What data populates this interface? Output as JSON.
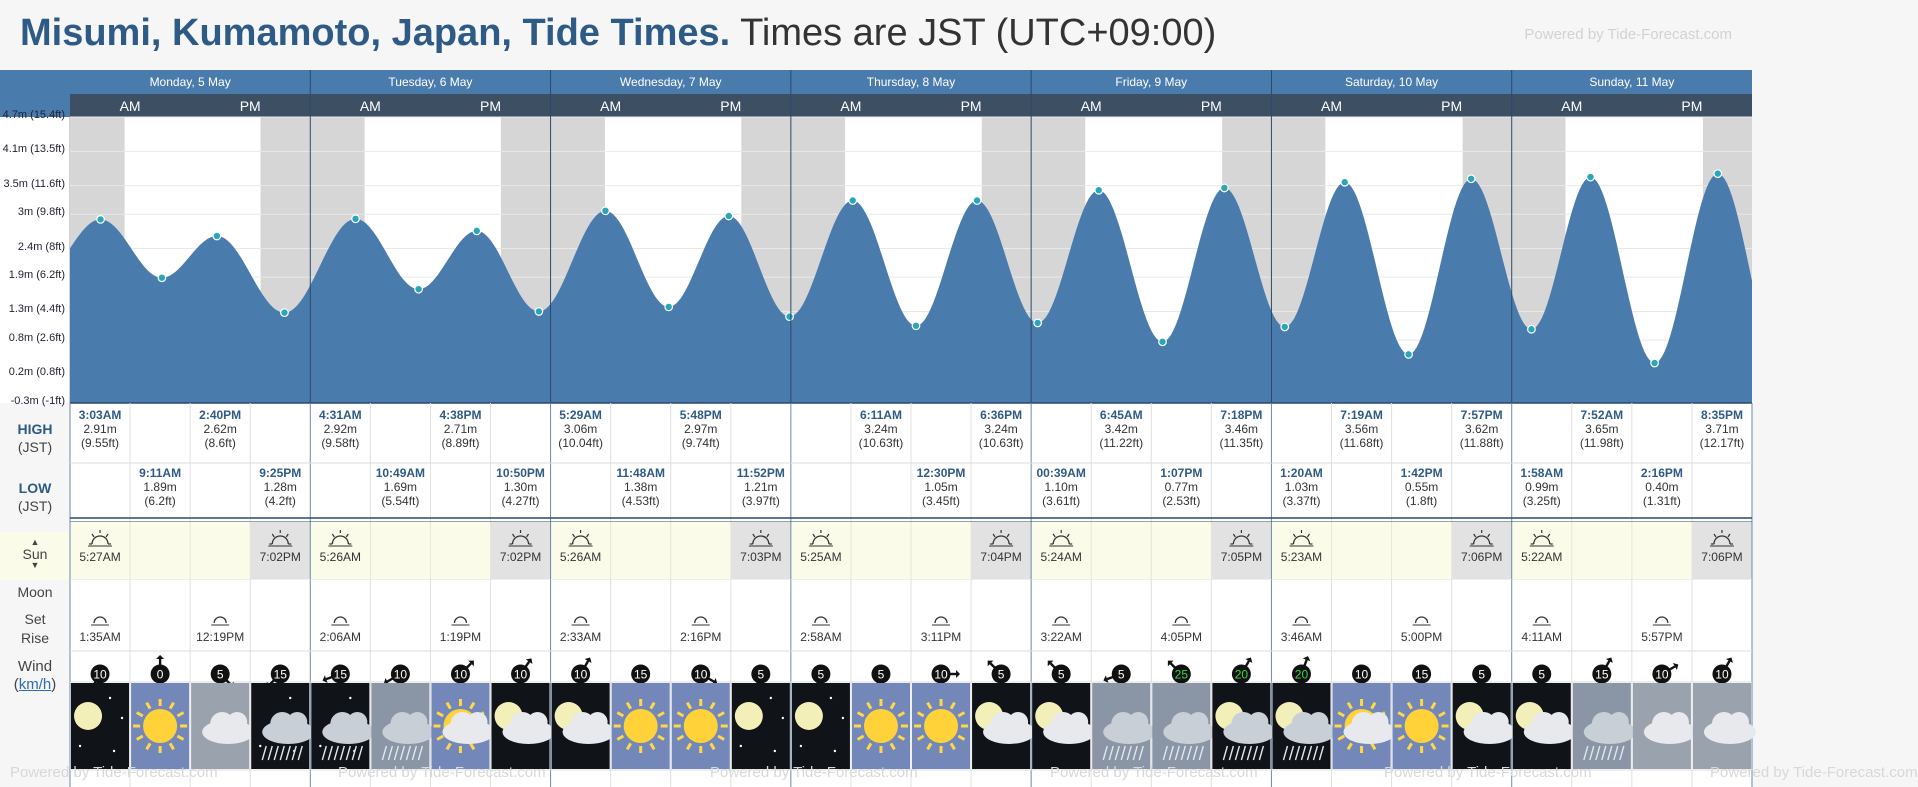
{
  "header": {
    "place": "Misumi, Kumamoto, Japan, Tide Times.",
    "timezone": "Times are JST (UTC+09:00)",
    "powered": "Powered by Tide-Forecast.com"
  },
  "watermark": "Powered by Tide-Forecast.com",
  "ampm": {
    "am": "AM",
    "pm": "PM"
  },
  "rows": {
    "high": "HIGH",
    "high_tz": "(JST)",
    "low": "LOW",
    "low_tz": "(JST)",
    "sun": "Sun",
    "moon": "Moon",
    "moon_set": "Set",
    "moon_rise": "Rise",
    "wind": "Wind",
    "wind_unit": "km/h"
  },
  "days": [
    "Monday, 5 May",
    "Tuesday, 6 May",
    "Wednesday, 7 May",
    "Thursday, 8 May",
    "Friday, 9 May",
    "Saturday, 10 May",
    "Sunday, 11 May"
  ],
  "chart_data": {
    "type": "area",
    "x_unit": "hours from Monday 5 May 00:00 JST",
    "ylim": [
      -0.3,
      4.7
    ],
    "y_ticks": [
      {
        "v": -0.3,
        "label": "-0.3m (-1ft)"
      },
      {
        "v": 0.2,
        "label": "0.2m (0.8ft)"
      },
      {
        "v": 0.8,
        "label": "0.8m (2.6ft)"
      },
      {
        "v": 1.3,
        "label": "1.3m (4.4ft)"
      },
      {
        "v": 1.9,
        "label": "1.9m (6.2ft)"
      },
      {
        "v": 2.4,
        "label": "2.4m (8ft)"
      },
      {
        "v": 3.0,
        "label": "3m (9.8ft)"
      },
      {
        "v": 3.5,
        "label": "3.5m (11.6ft)"
      },
      {
        "v": 4.1,
        "label": "4.1m (13.5ft)"
      },
      {
        "v": 4.7,
        "label": "4.7m (15.4ft)"
      }
    ],
    "extremes": [
      {
        "x": 3.05,
        "y": 2.91,
        "type": "high",
        "time": "3:03AM",
        "m": "2.91m",
        "ft": "(9.55ft)"
      },
      {
        "x": 9.18,
        "y": 1.89,
        "type": "low",
        "time": "9:11AM",
        "m": "1.89m",
        "ft": "(6.2ft)"
      },
      {
        "x": 14.67,
        "y": 2.62,
        "type": "high",
        "time": "2:40PM",
        "m": "2.62m",
        "ft": "(8.6ft)"
      },
      {
        "x": 21.42,
        "y": 1.28,
        "type": "low",
        "time": "9:25PM",
        "m": "1.28m",
        "ft": "(4.2ft)"
      },
      {
        "x": 28.52,
        "y": 2.92,
        "type": "high",
        "time": "4:31AM",
        "m": "2.92m",
        "ft": "(9.58ft)"
      },
      {
        "x": 34.82,
        "y": 1.69,
        "type": "low",
        "time": "10:49AM",
        "m": "1.69m",
        "ft": "(5.54ft)"
      },
      {
        "x": 40.63,
        "y": 2.71,
        "type": "high",
        "time": "4:38PM",
        "m": "2.71m",
        "ft": "(8.89ft)"
      },
      {
        "x": 46.83,
        "y": 1.3,
        "type": "low",
        "time": "10:50PM",
        "m": "1.30m",
        "ft": "(4.27ft)"
      },
      {
        "x": 53.48,
        "y": 3.06,
        "type": "high",
        "time": "5:29AM",
        "m": "3.06m",
        "ft": "(10.04ft)"
      },
      {
        "x": 59.8,
        "y": 1.38,
        "type": "low",
        "time": "11:48AM",
        "m": "1.38m",
        "ft": "(4.53ft)"
      },
      {
        "x": 65.8,
        "y": 2.97,
        "type": "high",
        "time": "5:48PM",
        "m": "2.97m",
        "ft": "(9.74ft)"
      },
      {
        "x": 71.87,
        "y": 1.21,
        "type": "low",
        "time": "11:52PM",
        "m": "1.21m",
        "ft": "(3.97ft)"
      },
      {
        "x": 78.18,
        "y": 3.24,
        "type": "high",
        "time": "6:11AM",
        "m": "3.24m",
        "ft": "(10.63ft)"
      },
      {
        "x": 84.5,
        "y": 1.05,
        "type": "low",
        "time": "12:30PM",
        "m": "1.05m",
        "ft": "(3.45ft)"
      },
      {
        "x": 90.6,
        "y": 3.24,
        "type": "high",
        "time": "6:36PM",
        "m": "3.24m",
        "ft": "(10.63ft)"
      },
      {
        "x": 96.65,
        "y": 1.1,
        "type": "low",
        "time": "00:39AM",
        "m": "1.10m",
        "ft": "(3.61ft)"
      },
      {
        "x": 102.75,
        "y": 3.42,
        "type": "high",
        "time": "6:45AM",
        "m": "3.42m",
        "ft": "(11.22ft)"
      },
      {
        "x": 109.12,
        "y": 0.77,
        "type": "low",
        "time": "1:07PM",
        "m": "0.77m",
        "ft": "(2.53ft)"
      },
      {
        "x": 115.3,
        "y": 3.46,
        "type": "high",
        "time": "7:18PM",
        "m": "3.46m",
        "ft": "(11.35ft)"
      },
      {
        "x": 121.33,
        "y": 1.03,
        "type": "low",
        "time": "1:20AM",
        "m": "1.03m",
        "ft": "(3.37ft)"
      },
      {
        "x": 127.32,
        "y": 3.56,
        "type": "high",
        "time": "7:19AM",
        "m": "3.56m",
        "ft": "(11.68ft)"
      },
      {
        "x": 133.7,
        "y": 0.55,
        "type": "low",
        "time": "1:42PM",
        "m": "0.55m",
        "ft": "(1.8ft)"
      },
      {
        "x": 139.95,
        "y": 3.62,
        "type": "high",
        "time": "7:57PM",
        "m": "3.62m",
        "ft": "(11.88ft)"
      },
      {
        "x": 145.97,
        "y": 0.99,
        "type": "low",
        "time": "1:58AM",
        "m": "0.99m",
        "ft": "(3.25ft)"
      },
      {
        "x": 151.87,
        "y": 3.65,
        "type": "high",
        "time": "7:52AM",
        "m": "3.65m",
        "ft": "(11.98ft)"
      },
      {
        "x": 158.27,
        "y": 0.4,
        "type": "low",
        "time": "2:16PM",
        "m": "0.40m",
        "ft": "(1.31ft)"
      },
      {
        "x": 164.58,
        "y": 3.71,
        "type": "high",
        "time": "8:35PM",
        "m": "3.71m",
        "ft": "(12.17ft)"
      }
    ],
    "night_hours": [
      [
        0,
        5.45
      ],
      [
        19.03,
        29.43
      ],
      [
        43.03,
        53.43
      ],
      [
        67.05,
        77.42
      ],
      [
        91.07,
        101.4
      ],
      [
        115.08,
        125.38
      ],
      [
        139.1,
        149.37
      ],
      [
        163.1,
        168
      ]
    ]
  },
  "sun": [
    {
      "slot": 0,
      "time": "5:27AM",
      "kind": "rise"
    },
    {
      "slot": 3,
      "time": "7:02PM",
      "kind": "set"
    },
    {
      "slot": 4,
      "time": "5:26AM",
      "kind": "rise"
    },
    {
      "slot": 7,
      "time": "7:02PM",
      "kind": "set"
    },
    {
      "slot": 8,
      "time": "5:26AM",
      "kind": "rise"
    },
    {
      "slot": 11,
      "time": "7:03PM",
      "kind": "set"
    },
    {
      "slot": 12,
      "time": "5:25AM",
      "kind": "rise"
    },
    {
      "slot": 15,
      "time": "7:04PM",
      "kind": "set"
    },
    {
      "slot": 16,
      "time": "5:24AM",
      "kind": "rise"
    },
    {
      "slot": 19,
      "time": "7:05PM",
      "kind": "set"
    },
    {
      "slot": 20,
      "time": "5:23AM",
      "kind": "rise"
    },
    {
      "slot": 23,
      "time": "7:06PM",
      "kind": "set"
    },
    {
      "slot": 24,
      "time": "5:22AM",
      "kind": "rise"
    },
    {
      "slot": 27,
      "time": "7:06PM",
      "kind": "set"
    }
  ],
  "moon": [
    {
      "slot": 0,
      "time": "1:35AM"
    },
    {
      "slot": 2,
      "time": "12:19PM"
    },
    {
      "slot": 4,
      "time": "2:06AM"
    },
    {
      "slot": 6,
      "time": "1:19PM"
    },
    {
      "slot": 8,
      "time": "2:33AM"
    },
    {
      "slot": 10,
      "time": "2:16PM"
    },
    {
      "slot": 12,
      "time": "2:58AM"
    },
    {
      "slot": 14,
      "time": "3:11PM"
    },
    {
      "slot": 16,
      "time": "3:22AM"
    },
    {
      "slot": 18,
      "time": "4:05PM"
    },
    {
      "slot": 20,
      "time": "3:46AM"
    },
    {
      "slot": 22,
      "time": "5:00PM"
    },
    {
      "slot": 24,
      "time": "4:11AM"
    },
    {
      "slot": 26,
      "time": "5:57PM"
    }
  ],
  "wind": [
    {
      "v": "10",
      "dir": 210,
      "color": "#ffffff"
    },
    {
      "v": "0",
      "dir": 0,
      "color": "#ffffff"
    },
    {
      "v": "5",
      "dir": 135,
      "color": "#ffffff"
    },
    {
      "v": "15",
      "dir": 225,
      "color": "#ffffff"
    },
    {
      "v": "15",
      "dir": 250,
      "color": "#ffffff"
    },
    {
      "v": "10",
      "dir": 240,
      "color": "#ffffff"
    },
    {
      "v": "10",
      "dir": 45,
      "color": "#ffffff"
    },
    {
      "v": "10",
      "dir": 35,
      "color": "#ffffff"
    },
    {
      "v": "10",
      "dir": 30,
      "color": "#ffffff"
    },
    {
      "v": "15",
      "dir": 180,
      "color": "#ffffff"
    },
    {
      "v": "10",
      "dir": 120,
      "color": "#ffffff"
    },
    {
      "v": "5",
      "dir": 200,
      "color": "#ffffff"
    },
    {
      "v": "5",
      "dir": 200,
      "color": "#ffffff"
    },
    {
      "v": "5",
      "dir": 200,
      "color": "#ffffff"
    },
    {
      "v": "10",
      "dir": 90,
      "color": "#ffffff"
    },
    {
      "v": "5",
      "dir": 315,
      "color": "#ffffff"
    },
    {
      "v": "5",
      "dir": 315,
      "color": "#ffffff"
    },
    {
      "v": "5",
      "dir": 250,
      "color": "#ffffff"
    },
    {
      "v": "25",
      "dir": 315,
      "color": "#37d64a"
    },
    {
      "v": "20",
      "dir": 30,
      "color": "#37d64a"
    },
    {
      "v": "20",
      "dir": 20,
      "color": "#37d64a"
    },
    {
      "v": "10",
      "dir": 180,
      "color": "#ffffff"
    },
    {
      "v": "15",
      "dir": 180,
      "color": "#ffffff"
    },
    {
      "v": "5",
      "dir": 200,
      "color": "#ffffff"
    },
    {
      "v": "5",
      "dir": 200,
      "color": "#ffffff"
    },
    {
      "v": "15",
      "dir": 30,
      "color": "#ffffff"
    },
    {
      "v": "10",
      "dir": 60,
      "color": "#ffffff"
    },
    {
      "v": "10",
      "dir": 30,
      "color": "#ffffff"
    }
  ],
  "weather": [
    "moon-clear",
    "sun",
    "clouds",
    "night-rain",
    "night-rain",
    "rain",
    "sun-cloud",
    "moon-cloud",
    "moon-cloud",
    "sun",
    "sun",
    "moon-clear",
    "moon-clear",
    "sun",
    "sun",
    "moon-cloud",
    "moon-cloud",
    "rain",
    "rain",
    "moon-rain",
    "moon-rain",
    "sun-cloud",
    "sun",
    "moon-cloud",
    "moon-cloud",
    "rain",
    "clouds",
    "clouds"
  ],
  "colors": {
    "water": "#4a7bad",
    "night": "#d6d6d6",
    "header": "#4a7bad",
    "subheader": "#3c4f63",
    "sunrow": "#fbfbea",
    "grid_bg": "#ffffff"
  }
}
